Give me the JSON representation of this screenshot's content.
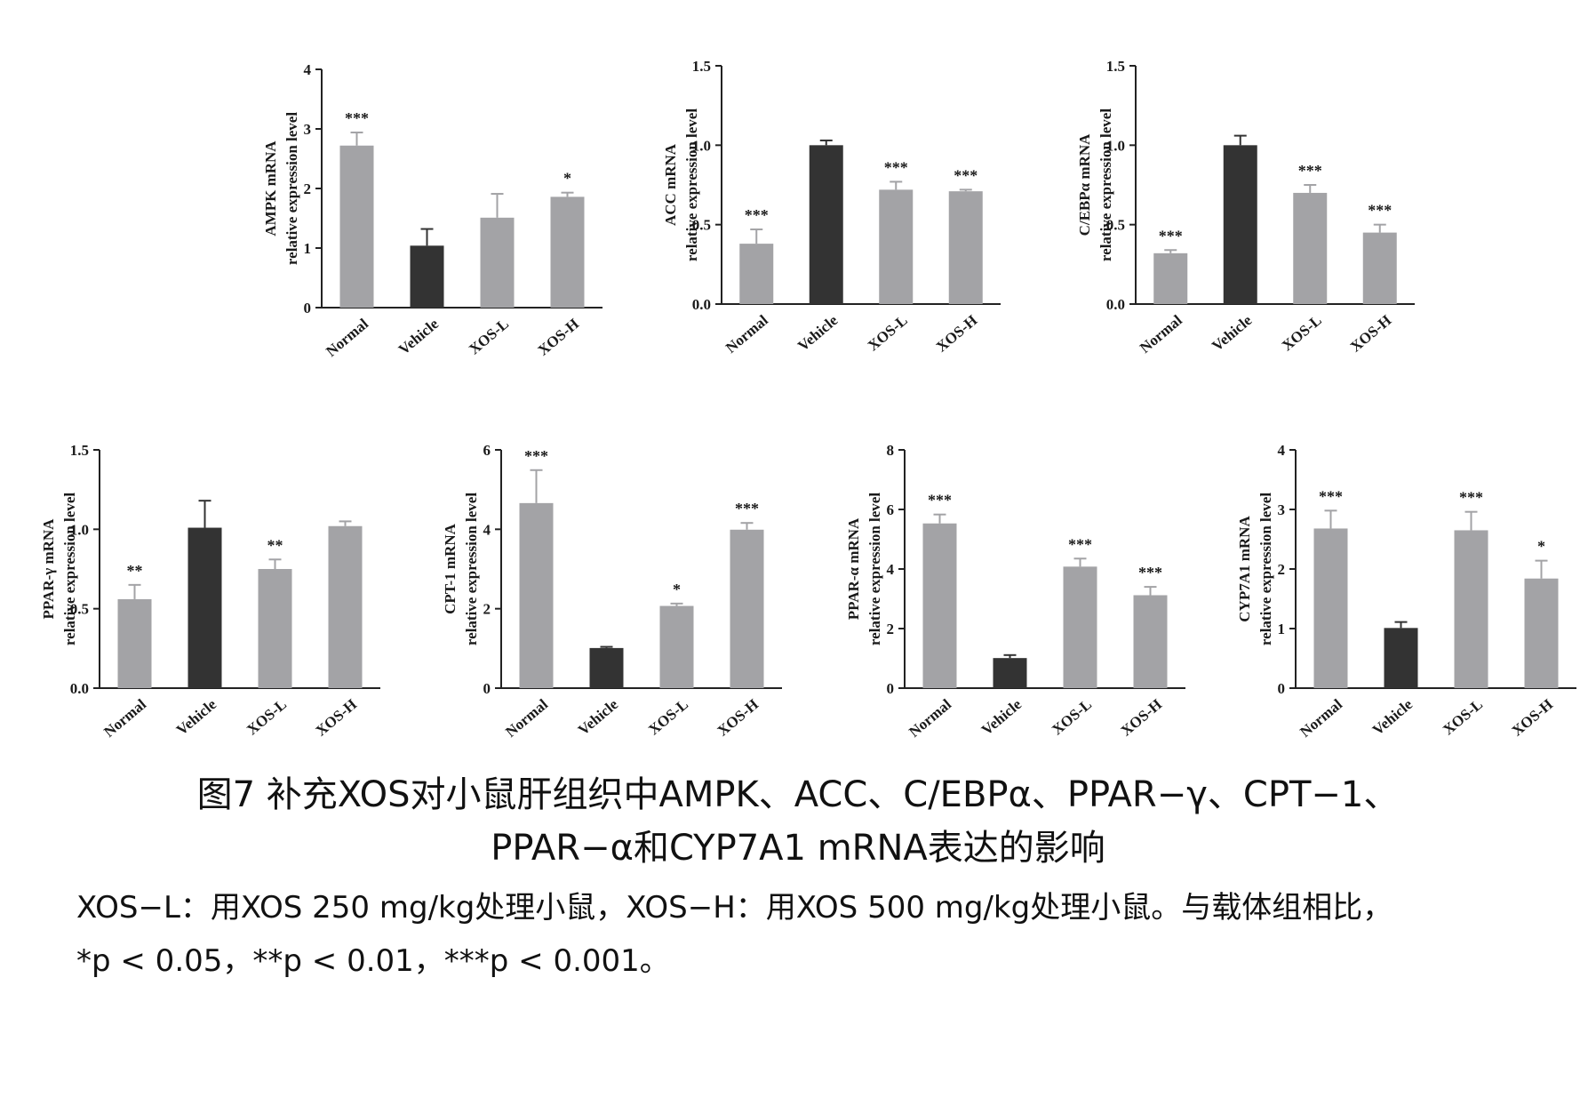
{
  "chart_data": [
    {
      "type": "bar",
      "ylabel": [
        "AMPK mRNA",
        "relative expression level"
      ],
      "categories": [
        "Normal",
        "Vehicle",
        "XOS-L",
        "XOS-H"
      ],
      "values": [
        2.72,
        1.04,
        1.51,
        1.86
      ],
      "errors": [
        0.22,
        0.28,
        0.4,
        0.07
      ],
      "significance": [
        "***",
        "",
        "",
        "*"
      ],
      "ylim": [
        0,
        4
      ],
      "yticks": [
        "0",
        "1",
        "2",
        "3",
        "4"
      ],
      "bar_colors": [
        "#a3a3a6",
        "#333333",
        "#a3a3a6",
        "#a3a3a6"
      ]
    },
    {
      "type": "bar",
      "ylabel": [
        "ACC mRNA",
        "relative expression level"
      ],
      "categories": [
        "Normal",
        "Vehicle",
        "XOS-L",
        "XOS-H"
      ],
      "values": [
        0.38,
        1.0,
        0.72,
        0.71
      ],
      "errors": [
        0.09,
        0.03,
        0.05,
        0.01
      ],
      "significance": [
        "***",
        "",
        "***",
        "***"
      ],
      "ylim": [
        0,
        1.5
      ],
      "yticks": [
        "0.0",
        "0.5",
        "1.0",
        "1.5"
      ],
      "bar_colors": [
        "#a3a3a6",
        "#333333",
        "#a3a3a6",
        "#a3a3a6"
      ]
    },
    {
      "type": "bar",
      "ylabel": [
        "C/EBPα mRNA",
        "relative expression level"
      ],
      "categories": [
        "Normal",
        "Vehicle",
        "XOS-L",
        "XOS-H"
      ],
      "values": [
        0.32,
        1.0,
        0.7,
        0.45
      ],
      "errors": [
        0.02,
        0.06,
        0.05,
        0.05
      ],
      "significance": [
        "***",
        "",
        "***",
        "***"
      ],
      "ylim": [
        0,
        1.5
      ],
      "yticks": [
        "0.0",
        "0.5",
        "1.0",
        "1.5"
      ],
      "bar_colors": [
        "#a3a3a6",
        "#333333",
        "#a3a3a6",
        "#a3a3a6"
      ]
    },
    {
      "type": "bar",
      "ylabel": [
        "PPAR-γ mRNA",
        "relative expression level"
      ],
      "categories": [
        "Normal",
        "Vehicle",
        "XOS-L",
        "XOS-H"
      ],
      "values": [
        0.56,
        1.01,
        0.75,
        1.02
      ],
      "errors": [
        0.09,
        0.17,
        0.06,
        0.03
      ],
      "significance": [
        "**",
        "",
        "**",
        ""
      ],
      "ylim": [
        0,
        1.5
      ],
      "yticks": [
        "0.0",
        "0.5",
        "1.0",
        "1.5"
      ],
      "bar_colors": [
        "#a3a3a6",
        "#333333",
        "#a3a3a6",
        "#a3a3a6"
      ]
    },
    {
      "type": "bar",
      "ylabel": [
        "CPT-1 mRNA",
        "relative expression level"
      ],
      "categories": [
        "Normal",
        "Vehicle",
        "XOS-L",
        "XOS-H"
      ],
      "values": [
        4.66,
        1.01,
        2.07,
        3.99
      ],
      "errors": [
        0.83,
        0.03,
        0.06,
        0.17
      ],
      "significance": [
        "***",
        "",
        "*",
        "***"
      ],
      "ylim": [
        0,
        6
      ],
      "yticks": [
        "0",
        "2",
        "4",
        "6"
      ],
      "bar_colors": [
        "#a3a3a6",
        "#333333",
        "#a3a3a6",
        "#a3a3a6"
      ]
    },
    {
      "type": "bar",
      "ylabel": [
        "PPAR-α mRNA",
        "relative expression level"
      ],
      "categories": [
        "Normal",
        "Vehicle",
        "XOS-L",
        "XOS-H"
      ],
      "values": [
        5.53,
        1.01,
        4.08,
        3.12
      ],
      "errors": [
        0.3,
        0.1,
        0.27,
        0.28
      ],
      "significance": [
        "***",
        "",
        "***",
        "***"
      ],
      "ylim": [
        0,
        8
      ],
      "yticks": [
        "0",
        "2",
        "4",
        "6",
        "8"
      ],
      "bar_colors": [
        "#a3a3a6",
        "#333333",
        "#a3a3a6",
        "#a3a3a6"
      ]
    },
    {
      "type": "bar",
      "ylabel": [
        "CYP7A1 mRNA",
        "relative expression level"
      ],
      "categories": [
        "Normal",
        "Vehicle",
        "XOS-L",
        "XOS-H"
      ],
      "values": [
        2.68,
        1.01,
        2.65,
        1.84
      ],
      "errors": [
        0.3,
        0.1,
        0.31,
        0.3
      ],
      "significance": [
        "***",
        "",
        "***",
        "*"
      ],
      "ylim": [
        0,
        4
      ],
      "yticks": [
        "0",
        "1",
        "2",
        "3",
        "4"
      ],
      "bar_colors": [
        "#a3a3a6",
        "#333333",
        "#a3a3a6",
        "#a3a3a6"
      ]
    }
  ],
  "caption": {
    "title_line1": "图7 补充XOS对小鼠肝组织中AMPK、ACC、C/EBPα、PPAR−γ、CPT−1、",
    "title_line2": "PPAR−α和CYP7A1 mRNA表达的影响",
    "note_line1": "XOS−L：用XOS 250 mg/kg处理小鼠，XOS−H：用XOS 500 mg/kg处理小鼠。与载体组相比，",
    "note_line2": "*p < 0.05，**p < 0.01，***p < 0.001。"
  }
}
